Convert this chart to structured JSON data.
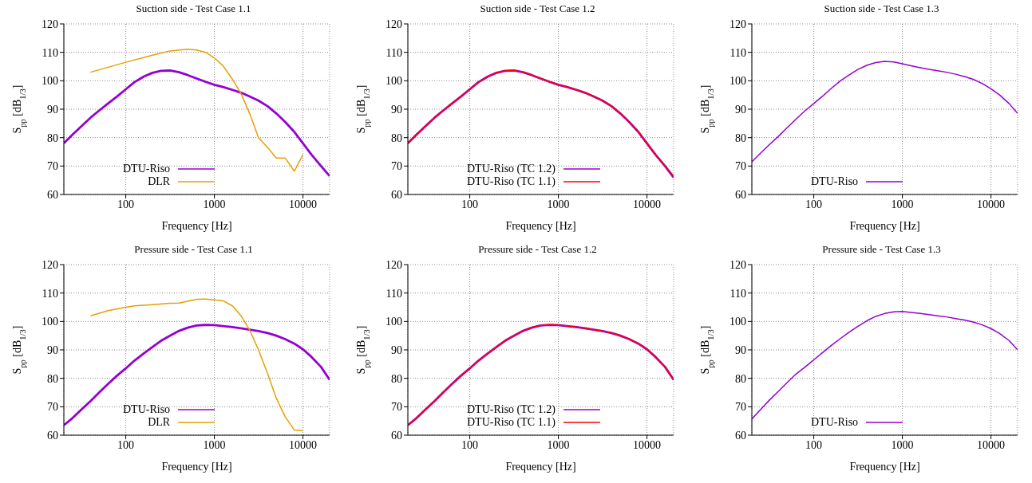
{
  "chart_data": [
    {
      "type": "line",
      "title": "Suction side - Test Case 1.1",
      "xlabel": "Frequency [Hz]",
      "ylabel": "S$_{pp}$ [dB$_{1/3}$]",
      "log": "x",
      "xlim": [
        20,
        20000
      ],
      "xticks": [
        100,
        1000,
        10000
      ],
      "ylim": [
        60,
        120
      ],
      "yticks": [
        60,
        70,
        80,
        90,
        100,
        110,
        120
      ],
      "grid": true,
      "legend": "bottom",
      "series": [
        {
          "name": "DTU-Riso",
          "color": "#9400d3",
          "x": [
            20,
            25,
            31.5,
            40,
            50,
            63,
            80,
            100,
            125,
            160,
            200,
            250,
            315,
            400,
            500,
            630,
            800,
            1000,
            1250,
            1600,
            2000,
            2500,
            3150,
            4000,
            5000,
            6300,
            8000,
            10000,
            12500,
            16000,
            20000
          ],
          "values": [
            78,
            81,
            84,
            87,
            89.5,
            92,
            94.5,
            97,
            99.5,
            101.5,
            102.8,
            103.5,
            103.6,
            103,
            102,
            100.8,
            99.6,
            98.6,
            97.8,
            96.8,
            95.8,
            94.5,
            93,
            91,
            88.5,
            85.5,
            82,
            78,
            74,
            70,
            66.5
          ]
        },
        {
          "name": "DLR",
          "color": "#e69f00",
          "x": [
            40,
            100,
            200,
            315,
            500,
            630,
            800,
            1000,
            1250,
            1600,
            2000,
            2500,
            3150,
            4000,
            5000,
            6300,
            8000,
            10000
          ],
          "values": [
            103,
            106.5,
            109,
            110.5,
            111.1,
            110.8,
            110,
            108,
            105.3,
            100.5,
            95.5,
            88.5,
            80,
            76.5,
            72.8,
            72.8,
            68.2,
            74
          ]
        }
      ]
    },
    {
      "type": "line",
      "title": "Suction side - Test Case 1.2",
      "xlabel": "Frequency [Hz]",
      "ylabel": "S$_{pp}$ [dB$_{1/3}$]",
      "log": "x",
      "xlim": [
        20,
        20000
      ],
      "xticks": [
        100,
        1000,
        10000
      ],
      "ylim": [
        60,
        120
      ],
      "yticks": [
        60,
        70,
        80,
        90,
        100,
        110,
        120
      ],
      "grid": true,
      "legend": "bottom",
      "series": [
        {
          "name": "DTU-Riso (TC 1.2)",
          "color": "#9400d3",
          "x": [
            20,
            25,
            31.5,
            40,
            50,
            63,
            80,
            100,
            125,
            160,
            200,
            250,
            315,
            400,
            500,
            630,
            800,
            1000,
            1250,
            1600,
            2000,
            2500,
            3150,
            4000,
            5000,
            6300,
            8000,
            10000,
            12500,
            16000,
            20000
          ],
          "values": [
            78,
            81,
            84,
            87,
            89.5,
            92,
            94.5,
            97,
            99.5,
            101.5,
            102.8,
            103.5,
            103.6,
            103,
            102,
            100.8,
            99.6,
            98.6,
            97.8,
            96.8,
            95.8,
            94.5,
            93,
            91,
            88.5,
            85.5,
            82,
            78,
            74,
            70,
            66
          ]
        },
        {
          "name": "DTU-Riso (TC 1.1)",
          "color": "#ff0000",
          "x": [
            20,
            25,
            31.5,
            40,
            50,
            63,
            80,
            100,
            125,
            160,
            200,
            250,
            315,
            400,
            500,
            630,
            800,
            1000,
            1250,
            1600,
            2000,
            2500,
            3150,
            4000,
            5000,
            6300,
            8000,
            10000,
            12500,
            16000,
            20000
          ],
          "values": [
            78,
            81,
            84,
            87,
            89.5,
            92,
            94.5,
            97,
            99.5,
            101.5,
            102.8,
            103.5,
            103.6,
            103,
            102,
            100.8,
            99.6,
            98.6,
            97.8,
            96.8,
            95.8,
            94.5,
            93,
            91,
            88.5,
            85.5,
            82,
            78,
            74,
            70,
            66.5
          ]
        }
      ]
    },
    {
      "type": "line",
      "title": "Suction side - Test Case 1.3",
      "xlabel": "Frequency [Hz]",
      "ylabel": "S$_{pp}$ [dB$_{1/3}$]",
      "log": "x",
      "xlim": [
        20,
        20000
      ],
      "xticks": [
        100,
        1000,
        10000
      ],
      "ylim": [
        60,
        120
      ],
      "yticks": [
        60,
        70,
        80,
        90,
        100,
        110,
        120
      ],
      "grid": true,
      "legend": "bottom",
      "series": [
        {
          "name": "DTU-Riso",
          "color": "#9400d3",
          "x": [
            20,
            25,
            31.5,
            40,
            50,
            63,
            80,
            100,
            125,
            160,
            200,
            250,
            315,
            400,
            500,
            630,
            800,
            1000,
            1250,
            1600,
            2000,
            2500,
            3150,
            4000,
            5000,
            6300,
            8000,
            10000,
            12500,
            16000,
            20000
          ],
          "values": [
            71.5,
            74.5,
            77.5,
            80.5,
            83.5,
            86.5,
            89.5,
            92,
            94.5,
            97.5,
            100,
            102,
            104,
            105.5,
            106.4,
            106.8,
            106.6,
            106,
            105.3,
            104.6,
            104,
            103.5,
            103,
            102.3,
            101.5,
            100.5,
            99,
            97.2,
            95,
            92,
            88.5
          ]
        }
      ]
    },
    {
      "type": "line",
      "title": "Pressure side - Test Case 1.1",
      "xlabel": "Frequency [Hz]",
      "ylabel": "S$_{pp}$ [dB$_{1/3}$]",
      "log": "x",
      "xlim": [
        20,
        20000
      ],
      "xticks": [
        100,
        1000,
        10000
      ],
      "ylim": [
        60,
        120
      ],
      "yticks": [
        60,
        70,
        80,
        90,
        100,
        110,
        120
      ],
      "grid": true,
      "legend": "bottom",
      "series": [
        {
          "name": "DTU-Riso",
          "color": "#9400d3",
          "x": [
            20,
            25,
            31.5,
            40,
            50,
            63,
            80,
            100,
            125,
            160,
            200,
            250,
            315,
            400,
            500,
            630,
            800,
            1000,
            1250,
            1600,
            2000,
            2500,
            3150,
            4000,
            5000,
            6300,
            8000,
            10000,
            12500,
            16000,
            20000
          ],
          "values": [
            63.5,
            66,
            69,
            72,
            75,
            78,
            81,
            83.5,
            86.2,
            88.8,
            91,
            93.2,
            95,
            96.7,
            97.8,
            98.6,
            98.8,
            98.7,
            98.4,
            98,
            97.6,
            97.1,
            96.6,
            95.9,
            95,
            93.8,
            92.2,
            90.2,
            87.5,
            84,
            79.5
          ]
        },
        {
          "name": "DLR",
          "color": "#e69f00",
          "x": [
            40,
            63,
            100,
            125,
            200,
            315,
            400,
            630,
            800,
            1000,
            1250,
            1600,
            2000,
            2500,
            3150,
            4000,
            5000,
            6300,
            8000,
            10000
          ],
          "values": [
            102,
            103.8,
            105,
            105.5,
            105.9,
            106.4,
            106.5,
            107.8,
            107.9,
            107.6,
            107.3,
            105.5,
            102,
            97,
            90,
            81.5,
            73,
            66.5,
            61.8,
            61.6
          ]
        }
      ]
    },
    {
      "type": "line",
      "title": "Pressure side - Test Case 1.2",
      "xlabel": "Frequency [Hz]",
      "ylabel": "S$_{pp}$ [dB$_{1/3}$]",
      "log": "x",
      "xlim": [
        20,
        20000
      ],
      "xticks": [
        100,
        1000,
        10000
      ],
      "ylim": [
        60,
        120
      ],
      "yticks": [
        60,
        70,
        80,
        90,
        100,
        110,
        120
      ],
      "grid": true,
      "legend": "bottom",
      "series": [
        {
          "name": "DTU-Riso (TC 1.2)",
          "color": "#9400d3",
          "x": [
            20,
            25,
            31.5,
            40,
            50,
            63,
            80,
            100,
            125,
            160,
            200,
            250,
            315,
            400,
            500,
            630,
            800,
            1000,
            1250,
            1600,
            2000,
            2500,
            3150,
            4000,
            5000,
            6300,
            8000,
            10000,
            12500,
            16000,
            20000
          ],
          "values": [
            63.5,
            66,
            69,
            72,
            75,
            78,
            81,
            83.5,
            86.2,
            88.8,
            91,
            93.2,
            95,
            96.7,
            97.8,
            98.6,
            98.8,
            98.7,
            98.4,
            98,
            97.6,
            97.1,
            96.6,
            95.9,
            95,
            93.8,
            92.2,
            90.2,
            87.5,
            84,
            79.5
          ]
        },
        {
          "name": "DTU-Riso (TC 1.1)",
          "color": "#ff0000",
          "x": [
            20,
            25,
            31.5,
            40,
            50,
            63,
            80,
            100,
            125,
            160,
            200,
            250,
            315,
            400,
            500,
            630,
            800,
            1000,
            1250,
            1600,
            2000,
            2500,
            3150,
            4000,
            5000,
            6300,
            8000,
            10000,
            12500,
            16000,
            20000
          ],
          "values": [
            63.5,
            66,
            69,
            72,
            75,
            78,
            81,
            83.5,
            86.2,
            88.8,
            91,
            93.2,
            95,
            96.7,
            97.8,
            98.6,
            98.8,
            98.7,
            98.4,
            98,
            97.6,
            97.1,
            96.6,
            95.9,
            95,
            93.8,
            92.2,
            90.2,
            87.5,
            84,
            79.5
          ]
        }
      ]
    },
    {
      "type": "line",
      "title": "Pressure side - Test Case 1.3",
      "xlabel": "Frequency [Hz]",
      "ylabel": "S$_{pp}$ [dB$_{1/3}$]",
      "log": "x",
      "xlim": [
        20,
        20000
      ],
      "xticks": [
        100,
        1000,
        10000
      ],
      "ylim": [
        60,
        120
      ],
      "yticks": [
        60,
        70,
        80,
        90,
        100,
        110,
        120
      ],
      "grid": true,
      "legend": "bottom",
      "series": [
        {
          "name": "DTU-Riso",
          "color": "#9400d3",
          "x": [
            20,
            25,
            31.5,
            40,
            50,
            63,
            80,
            100,
            125,
            160,
            200,
            250,
            315,
            400,
            500,
            630,
            800,
            1000,
            1250,
            1600,
            2000,
            2500,
            3150,
            4000,
            5000,
            6300,
            8000,
            10000,
            12500,
            16000,
            20000
          ],
          "values": [
            65.7,
            69,
            72.3,
            75.5,
            78.5,
            81.5,
            84,
            86.5,
            89,
            91.7,
            94,
            96.2,
            98.3,
            100.3,
            101.8,
            102.8,
            103.4,
            103.5,
            103.2,
            102.8,
            102.4,
            102,
            101.6,
            101,
            100.5,
            99.8,
            98.8,
            97.5,
            95.8,
            93.3,
            90
          ]
        }
      ]
    }
  ]
}
